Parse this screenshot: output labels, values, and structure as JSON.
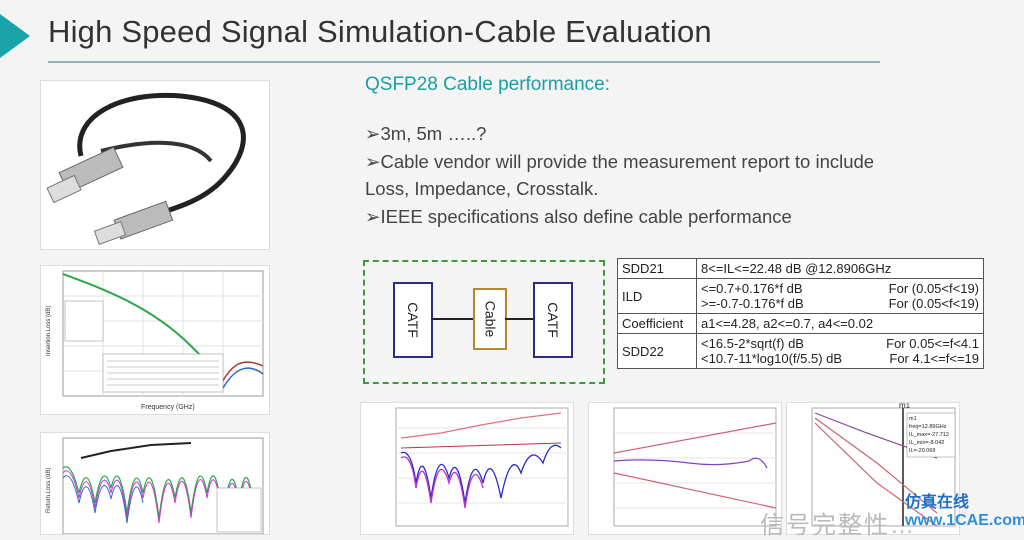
{
  "title": "High Speed Signal Simulation-Cable Evaluation",
  "subtitle": "QSFP28 Cable performance:",
  "bullets": [
    "➢3m, 5m …..?",
    "➢Cable vendor will provide the measurement report to include",
    "Loss, Impedance, Crosstalk.",
    "➢IEEE specifications also define cable performance"
  ],
  "block_diagram": {
    "left": "CATF",
    "middle": "Cable",
    "right": "CATF"
  },
  "spec_table": [
    {
      "name": "SDD21",
      "lines": [
        {
          "a": "8<=IL<=22.48 dB  @12.8906GHz",
          "b": ""
        }
      ]
    },
    {
      "name": "ILD",
      "lines": [
        {
          "a": "<=0.7+0.176*f  dB",
          "b": "For (0.05<f<19)"
        },
        {
          "a": ">=-0.7-0.176*f dB",
          "b": "For (0.05<f<19)"
        }
      ]
    },
    {
      "name": "Coefficient",
      "lines": [
        {
          "a": "a1<=4.28, a2<=0.7, a4<=0.02",
          "b": ""
        }
      ]
    },
    {
      "name": "SDD22",
      "lines": [
        {
          "a": "<16.5-2*sqrt(f) dB",
          "b": "For  0.05<=f<4.1"
        },
        {
          "a": "<10.7-11*log10(f/5.5) dB",
          "b": "For  4.1<=f<=19"
        }
      ]
    }
  ],
  "watermark": {
    "line1": "仿真在线",
    "line2": "www.1CAE.com",
    "gray": "信号完整性…"
  },
  "thumbs": {
    "il_xlabel": "Frequency (GHz)",
    "il_ylabel": "Insertion Loss (dB)",
    "rl_ylabel": "Return Loss (dB)",
    "m1_label": "m1",
    "m1_readout": [
      "m1",
      "freq=12.89GHz",
      "IL_max=-27.712",
      "IL_min=-8.042",
      "IL=-20.069"
    ]
  },
  "colors": {
    "accent": "#1aa3a8",
    "dashed_border": "#3c9a3c",
    "box": "#2c2c8c",
    "cable": "#b8862f"
  }
}
